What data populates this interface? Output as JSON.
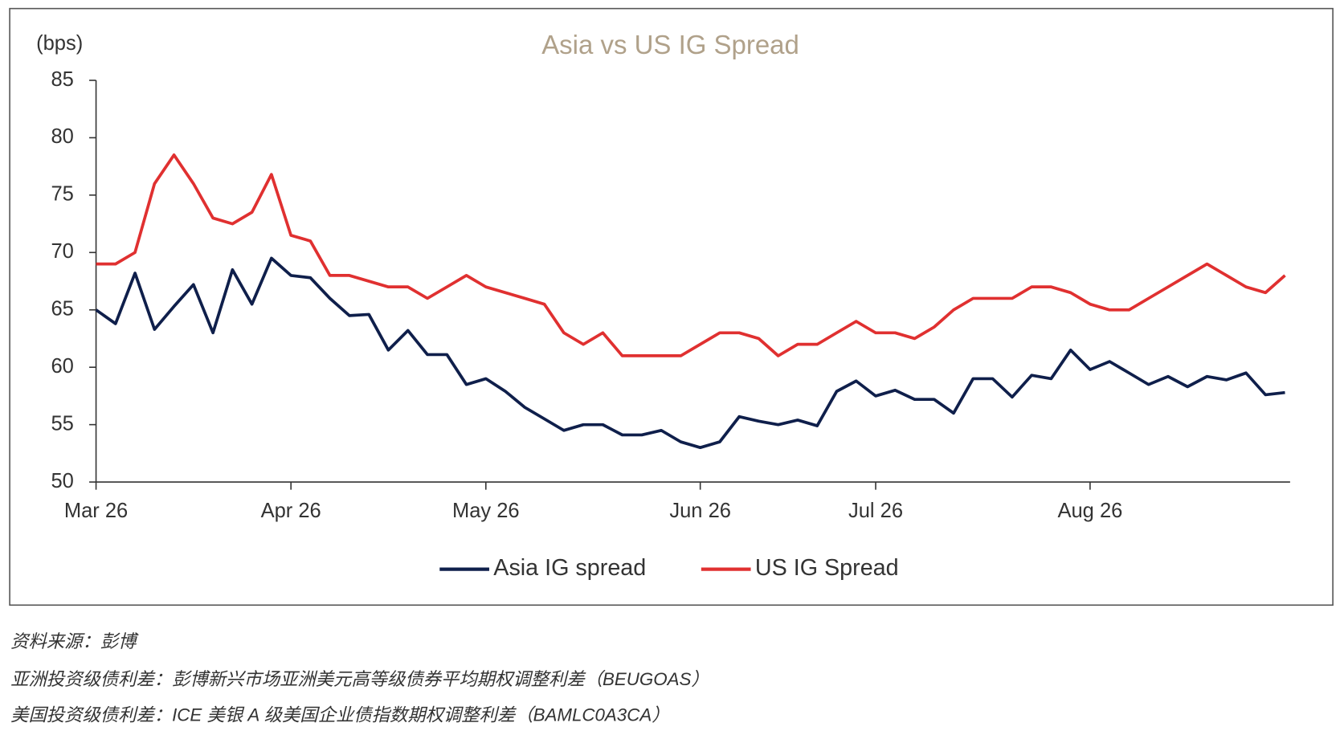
{
  "chart_data": {
    "type": "line",
    "title": "Asia vs US IG Spread",
    "y_label": "(bps)",
    "categories": [
      "Mar 26",
      null,
      null,
      null,
      null,
      null,
      null,
      null,
      null,
      null,
      "Apr 26",
      null,
      null,
      null,
      null,
      null,
      null,
      null,
      null,
      null,
      "May 26",
      null,
      null,
      null,
      null,
      null,
      null,
      null,
      null,
      null,
      null,
      "Jun 26",
      null,
      null,
      null,
      null,
      null,
      null,
      null,
      null,
      "Jul 26",
      null,
      null,
      null,
      null,
      null,
      null,
      null,
      null,
      null,
      null,
      "Aug 26",
      null,
      null,
      null,
      null,
      null,
      null,
      null,
      null,
      null,
      null
    ],
    "series": [
      {
        "name": "Asia IG spread",
        "color": "#0f1f4b",
        "values": [
          65,
          63.8,
          68.2,
          63.3,
          65.3,
          67.2,
          63,
          68.5,
          65.5,
          69.5,
          68,
          67.8,
          66,
          64.5,
          64.6,
          61.5,
          63.2,
          61.1,
          61.1,
          58.5,
          59,
          57.9,
          56.5,
          55.5,
          54.5,
          55,
          55,
          54.1,
          54.1,
          54.5,
          53.5,
          53,
          53.5,
          55.7,
          55.3,
          55,
          55.4,
          54.9,
          57.9,
          58.8,
          57.5,
          58,
          57.2,
          57.2,
          56,
          59,
          59,
          57.4,
          59.3,
          59,
          61.5,
          59.8,
          60.5,
          59.5,
          58.5,
          59.2,
          58.3,
          59.2,
          58.9,
          59.5,
          57.6,
          57.8
        ]
      },
      {
        "name": "US IG Spread",
        "color": "#e03030",
        "values": [
          69,
          69,
          70,
          76,
          78.5,
          76,
          73,
          72.5,
          73.5,
          76.8,
          71.5,
          71,
          68,
          68,
          67.5,
          67,
          67,
          66,
          67,
          68,
          67,
          66.5,
          66,
          65.5,
          63,
          62,
          63,
          61,
          61,
          61,
          61,
          62,
          63,
          63,
          62.5,
          61,
          62,
          62,
          63,
          64,
          63,
          63,
          62.5,
          63.5,
          65,
          66,
          66,
          66,
          67,
          67,
          66.5,
          65.5,
          65,
          65,
          66,
          67,
          68,
          69,
          68,
          67,
          66.5,
          68
        ]
      }
    ],
    "ylim": [
      50,
      85
    ],
    "yticks": [
      50,
      55,
      60,
      65,
      70,
      75,
      80,
      85
    ],
    "grid": false,
    "legend": "bottom"
  },
  "notes": [
    "资料来源：彭博",
    "亚洲投资级债利差：彭博新兴市场亚洲美元高等级债券平均期权调整利差（BEUGOAS）",
    "美国投资级债利差：ICE 美银 A 级美国企业债指数期权调整利差（BAMLC0A3CA）"
  ]
}
